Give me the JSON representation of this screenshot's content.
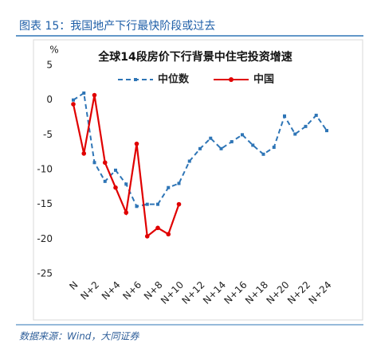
{
  "header": {
    "title": "图表 15：我国地产下行最快阶段或过去"
  },
  "chart_data": {
    "type": "line",
    "title": "全球14段房价下行背景中住宅投资增速",
    "y_label": "%",
    "categories": [
      "N",
      null,
      "N+2",
      null,
      "N+4",
      null,
      "N+6",
      null,
      "N+8",
      null,
      "N+10",
      null,
      "N+12",
      null,
      "N+14",
      null,
      "N+16",
      null,
      "N+18",
      null,
      "N+20",
      null,
      "N+22",
      null,
      "N+24"
    ],
    "series": [
      {
        "name": "中位数",
        "color": "#2e75b6",
        "dashed": true,
        "values": [
          0,
          1.0,
          -9,
          -11.7,
          -10.1,
          -12.1,
          -15.3,
          -15,
          -15,
          -12.6,
          -12,
          -8.8,
          -7,
          -5.5,
          -7,
          -6,
          -5,
          -6.5,
          -7.8,
          -6.8,
          -2.3,
          -4.9,
          -3.8,
          -2.2,
          -4.4
        ]
      },
      {
        "name": "中国",
        "color": "#e00000",
        "dashed": false,
        "values": [
          -0.6,
          -7.7,
          0.7,
          -9,
          -12.6,
          -16.2,
          -6.3,
          -19.6,
          -18.4,
          -19.3,
          -15,
          null,
          null,
          null,
          null,
          null,
          null,
          null,
          null,
          null,
          null,
          null,
          null,
          null,
          null
        ]
      }
    ],
    "ylim": [
      -25,
      5
    ],
    "yticks": [
      5,
      0,
      -5,
      -10,
      -15,
      -20,
      -25
    ]
  },
  "footer": {
    "source": "数据来源：Wind，大同证券"
  }
}
